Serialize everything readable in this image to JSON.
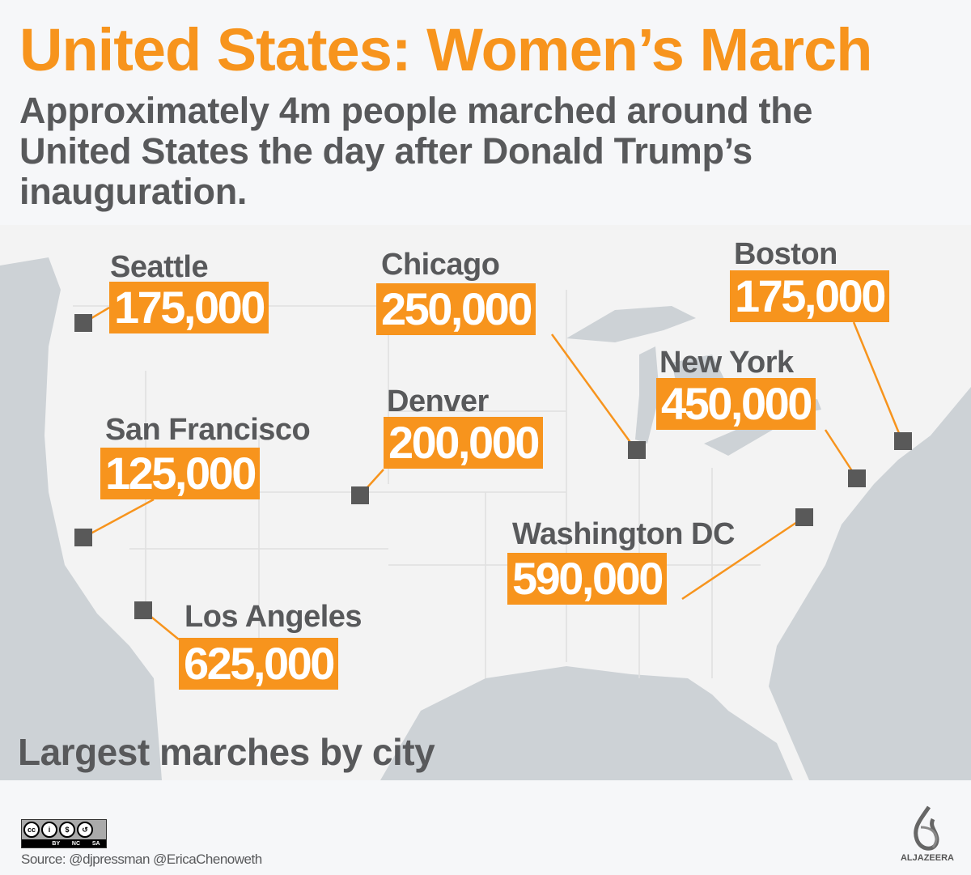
{
  "header": {
    "title": "United States: Women’s March",
    "subtitle": "Approximately 4m people marched around the United States the day after Donald Trump’s inauguration."
  },
  "map": {
    "legend_title": "Largest marches by city",
    "cities": [
      {
        "name": "Seattle",
        "count": "175,000"
      },
      {
        "name": "Chicago",
        "count": "250,000"
      },
      {
        "name": "Boston",
        "count": "175,000"
      },
      {
        "name": "New York",
        "count": "450,000"
      },
      {
        "name": "Denver",
        "count": "200,000"
      },
      {
        "name": "San Francisco",
        "count": "125,000"
      },
      {
        "name": "Washington DC",
        "count": "590,000"
      },
      {
        "name": "Los Angeles",
        "count": "625,000"
      }
    ],
    "colors": {
      "accent": "#f7941d",
      "marker": "#595959",
      "land": "#f3f3f3",
      "water": "#cdd2d6",
      "text": "#58595b"
    }
  },
  "footer": {
    "license": "CC BY NC SA",
    "license_labels": [
      "BY",
      "NC",
      "SA"
    ],
    "source": "Source: @djpressman @EricaChenoweth",
    "logo": "ALJAZEERA"
  }
}
